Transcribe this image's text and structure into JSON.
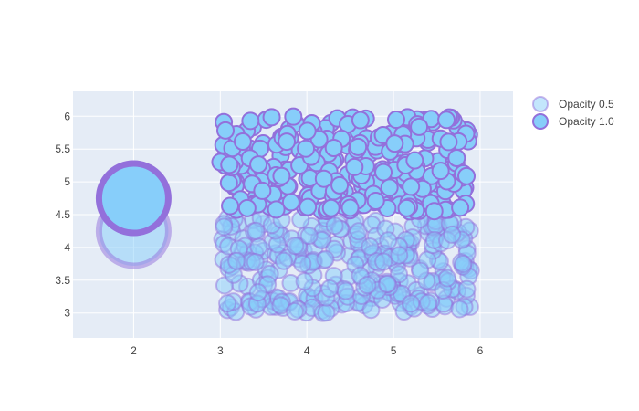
{
  "chart_data": {
    "type": "scatter",
    "title": "",
    "xlabel": "",
    "ylabel": "",
    "xlim": [
      1.3,
      6.38
    ],
    "ylim": [
      2.62,
      6.38
    ],
    "x_ticks": [
      "2",
      "3",
      "4",
      "5",
      "6"
    ],
    "y_ticks": [
      "3",
      "3.5",
      "4",
      "4.5",
      "5",
      "5.5",
      "6"
    ],
    "grid": true,
    "legend_position": "top-right",
    "background_color": "#E5ECF6",
    "marker_fill_color": "#87CEFA",
    "marker_line_color": "#9370DB",
    "series": [
      {
        "name": "Opacity 0.5",
        "opacity": 0.5,
        "region": {
          "x_range": [
            3.0,
            5.9
          ],
          "y_range": [
            3.0,
            4.45
          ],
          "count": 300
        },
        "big_points": [
          {
            "x": 2.0,
            "y": 4.25
          }
        ]
      },
      {
        "name": "Opacity 1.0",
        "opacity": 1.0,
        "region": {
          "x_range": [
            3.0,
            5.9
          ],
          "y_range": [
            4.55,
            6.0
          ],
          "count": 300
        },
        "big_points": [
          {
            "x": 2.0,
            "y": 4.75
          }
        ]
      }
    ]
  }
}
